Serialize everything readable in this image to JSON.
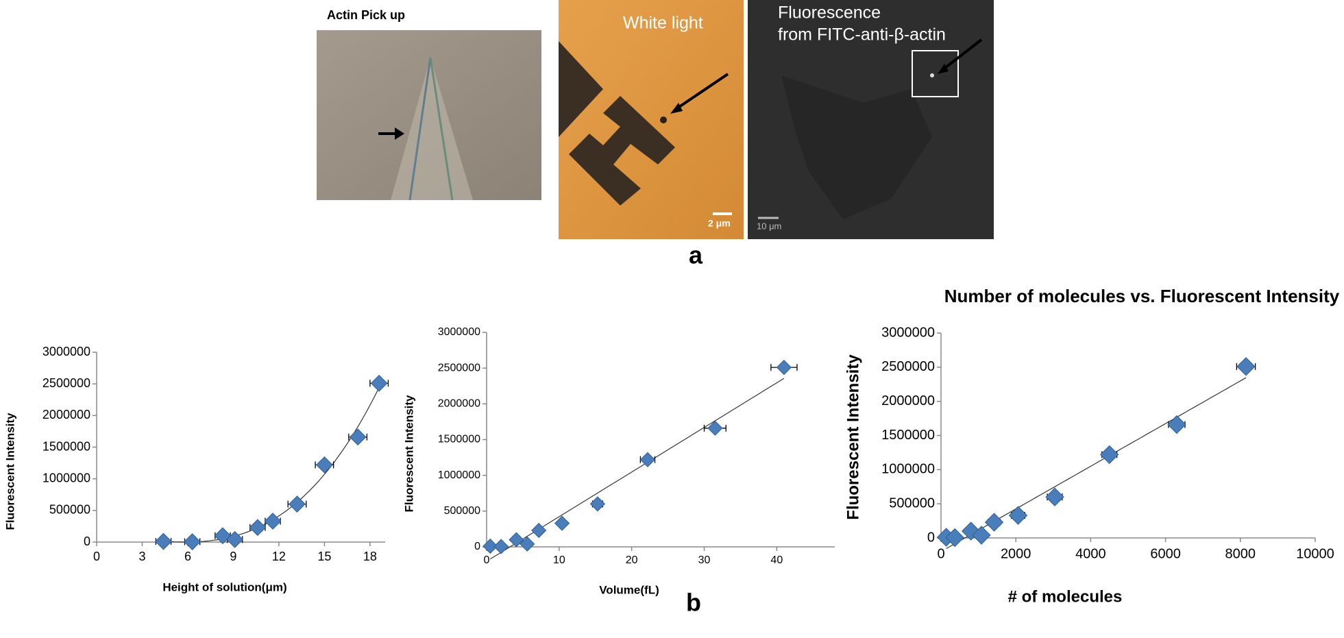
{
  "figure": {
    "label_a": "a",
    "label_b": "b",
    "images": [
      {
        "title": [
          "Actin Pick up"
        ]
      },
      {
        "title": [
          "White light"
        ],
        "scale_bar": "2 μm"
      },
      {
        "title": [
          "Fluorescence",
          "from FITC-anti-β-actin"
        ],
        "scale_bar": "10 μm"
      }
    ]
  },
  "chart_data": [
    {
      "type": "scatter",
      "x_label": "Height of solution(μm)",
      "y_label": "Fluorescent Intensity",
      "trendline": "polynomial",
      "color": "#4a7ebb",
      "x": [
        4.4,
        6.3,
        8.3,
        9.1,
        10.6,
        11.6,
        13.2,
        15.0,
        17.2,
        18.6
      ],
      "xerr": [
        0.5,
        0.5,
        0.5,
        0.5,
        0.5,
        0.5,
        0.6,
        0.6,
        0.6,
        0.6
      ],
      "values": [
        10000,
        5000,
        100000,
        40000,
        230000,
        330000,
        600000,
        1220000,
        1660000,
        2510000
      ],
      "xlim": [
        0,
        19
      ],
      "xticks": [
        0,
        3,
        6,
        9,
        12,
        15,
        18
      ],
      "ylim": [
        0,
        3000000
      ],
      "yticks": [
        0,
        500000,
        1000000,
        1500000,
        2000000,
        2500000,
        3000000
      ]
    },
    {
      "type": "scatter",
      "x_label": "Volume(fL)",
      "y_label": "Fluorescent Intensity",
      "trendline": "linear",
      "color": "#4a7ebb",
      "x": [
        0.5,
        2,
        4.1,
        5.6,
        7.2,
        10.4,
        15.3,
        22.2,
        31.5,
        41
      ],
      "xerr": [
        0.2,
        0.2,
        0.3,
        0.3,
        0.4,
        0.5,
        0.7,
        1,
        1.5,
        1.8
      ],
      "values": [
        10000,
        5000,
        100000,
        40000,
        230000,
        330000,
        600000,
        1220000,
        1660000,
        2510000
      ],
      "xlim": [
        0,
        48
      ],
      "xticks": [
        0,
        10,
        20,
        30,
        40
      ],
      "ylim": [
        0,
        3000000
      ],
      "yticks": [
        0,
        500000,
        1000000,
        1500000,
        2000000,
        2500000,
        3000000
      ]
    },
    {
      "type": "scatter",
      "title": "Number of molecules vs. Fluorescent Intensity",
      "x_label": "# of molecules",
      "y_label": "Fluorescent Intensity",
      "trendline": "linear",
      "color": "#4a7ebb",
      "x": [
        140,
        370,
        800,
        1080,
        1420,
        2060,
        3040,
        4500,
        6300,
        8150
      ],
      "xerr": [
        80,
        100,
        120,
        140,
        160,
        180,
        200,
        200,
        220,
        250
      ],
      "values": [
        10000,
        5000,
        100000,
        40000,
        230000,
        330000,
        600000,
        1220000,
        1660000,
        2510000
      ],
      "xlim": [
        0,
        10000
      ],
      "xticks": [
        0,
        2000,
        4000,
        6000,
        8000,
        10000
      ],
      "ylim": [
        0,
        3000000
      ],
      "yticks": [
        0,
        500000,
        1000000,
        1500000,
        2000000,
        2500000,
        3000000
      ]
    }
  ]
}
